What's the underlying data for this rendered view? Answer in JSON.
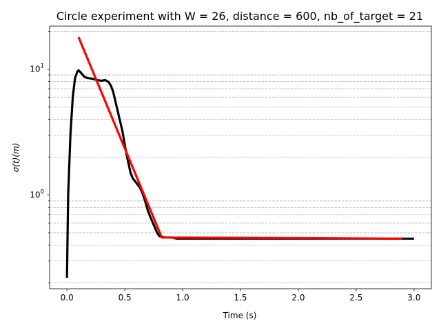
{
  "chart_data": {
    "type": "line",
    "title": "Circle experiment with W = 26, distance = 600, nb_of_target = 21",
    "xlabel": "Time (s)",
    "ylabel": "σ(t)(m)",
    "xlim": [
      -0.15,
      3.15
    ],
    "ylim": [
      0.18,
      22
    ],
    "yscale": "log",
    "grid": "y-minor-dashed",
    "x_ticks": [
      0.0,
      0.5,
      1.0,
      1.5,
      2.0,
      2.5,
      3.0
    ],
    "x_tick_labels": [
      "0.0",
      "0.5",
      "1.0",
      "1.5",
      "2.0",
      "2.5",
      "3.0"
    ],
    "y_major_ticks": [
      1,
      10
    ],
    "y_major_labels": [
      "10^0",
      "10^1"
    ],
    "y_minor_ticks": [
      0.2,
      0.3,
      0.4,
      0.5,
      0.6,
      0.7,
      0.8,
      0.9,
      2,
      3,
      4,
      5,
      6,
      7,
      8,
      9,
      20
    ],
    "series": [
      {
        "color": "#000000",
        "x": [
          0.0,
          0.01,
          0.03,
          0.05,
          0.07,
          0.09,
          0.1,
          0.12,
          0.15,
          0.18,
          0.22,
          0.26,
          0.3,
          0.33,
          0.36,
          0.38,
          0.4,
          0.42,
          0.45,
          0.48,
          0.5,
          0.52,
          0.55,
          0.57,
          0.6,
          0.63,
          0.65,
          0.67,
          0.7,
          0.72,
          0.75,
          0.78,
          0.8,
          0.83,
          0.86,
          0.9,
          0.95,
          1.0,
          1.5,
          2.0,
          2.5,
          3.0
        ],
        "y": [
          0.22,
          1.0,
          3.0,
          6.0,
          8.5,
          9.6,
          9.8,
          9.4,
          8.7,
          8.5,
          8.4,
          8.2,
          8.1,
          8.2,
          7.9,
          7.4,
          6.6,
          5.5,
          4.2,
          3.2,
          2.5,
          2.0,
          1.5,
          1.35,
          1.25,
          1.15,
          1.05,
          0.93,
          0.75,
          0.67,
          0.58,
          0.5,
          0.47,
          0.465,
          0.46,
          0.46,
          0.45,
          0.45,
          0.45,
          0.45,
          0.45,
          0.45
        ]
      },
      {
        "color": "#ff0000",
        "x": [
          0.1,
          0.82,
          2.9
        ],
        "y": [
          18.0,
          0.46,
          0.45
        ]
      }
    ]
  }
}
